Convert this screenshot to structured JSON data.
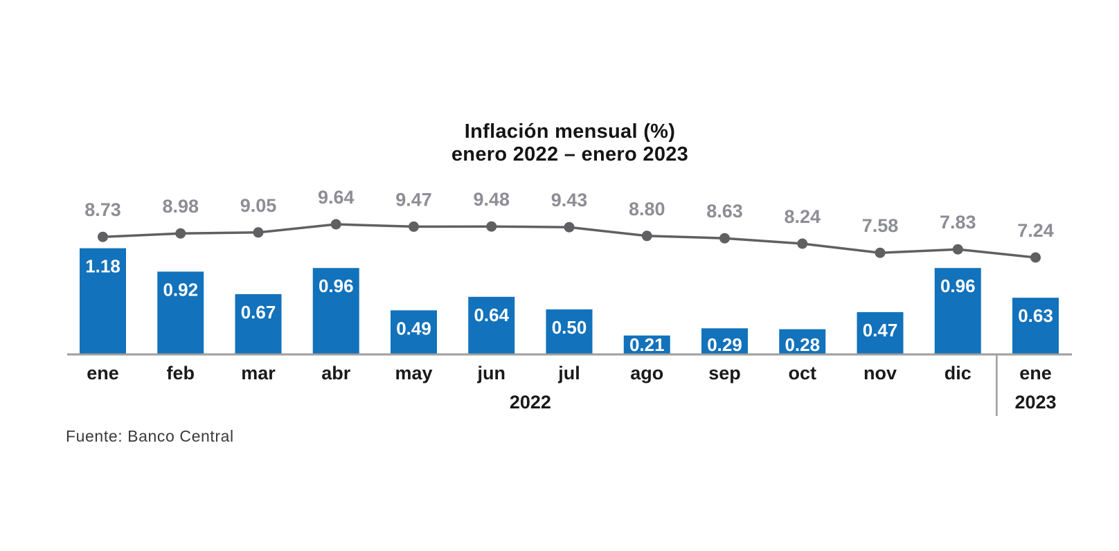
{
  "title": {
    "line1": "Inflación mensual (%)",
    "line2": "enero 2022 – enero 2023"
  },
  "source": "Fuente: Banco Central",
  "chart_data": {
    "type": "bar",
    "combo": "bar-with-line-overlay",
    "title": "Inflación mensual (%)",
    "subtitle": "enero 2022 – enero 2023",
    "categories": [
      "ene",
      "feb",
      "mar",
      "abr",
      "may",
      "jun",
      "jul",
      "ago",
      "sep",
      "oct",
      "nov",
      "dic",
      "ene"
    ],
    "x_axis": {
      "year_groups": [
        {
          "label": "2022",
          "start": 0,
          "end": 11
        },
        {
          "label": "2023",
          "start": 12,
          "end": 12
        }
      ]
    },
    "series": [
      {
        "id": "monthly-inflation-bars",
        "type": "bar",
        "values": [
          1.18,
          0.92,
          0.67,
          0.96,
          0.49,
          0.64,
          0.5,
          0.21,
          0.29,
          0.28,
          0.47,
          0.96,
          0.63
        ],
        "data_labels_visible": true
      },
      {
        "id": "trend-line",
        "type": "line",
        "values": [
          8.73,
          8.98,
          9.05,
          9.64,
          9.47,
          9.48,
          9.43,
          8.8,
          8.63,
          8.24,
          7.58,
          7.83,
          7.24
        ],
        "data_labels_visible": true
      }
    ],
    "legend": "none",
    "grid": false,
    "y_axis_visible": false,
    "source_note": "Fuente: Banco Central",
    "colors": {
      "bar": "#1272BB",
      "bar_label": "#FFFFFF",
      "line": "#606062",
      "line_label": "#8D8D95",
      "axis": "#9E9EA0",
      "text": "#141414"
    }
  }
}
